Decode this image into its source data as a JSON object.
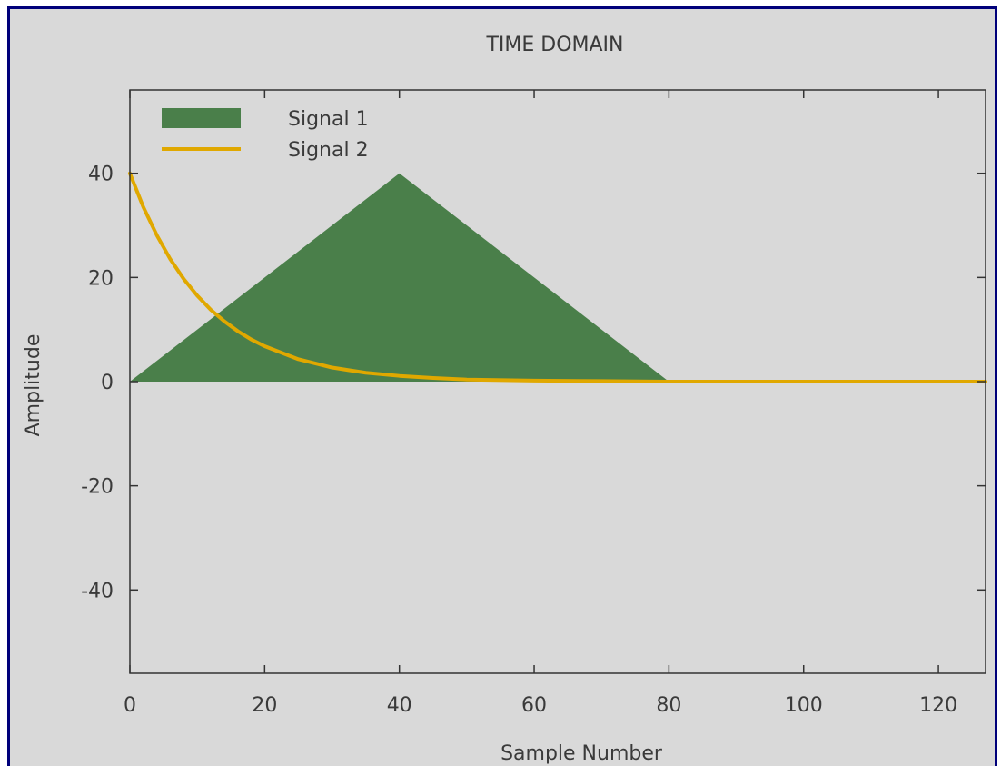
{
  "chart_data": {
    "type": "area",
    "title": "TIME DOMAIN",
    "xlabel": "Sample Number",
    "ylabel": "Amplitude",
    "xlim": [
      0,
      127
    ],
    "ylim": [
      -56,
      56
    ],
    "x_ticks": [
      0,
      20,
      40,
      60,
      80,
      100,
      120
    ],
    "y_ticks": [
      -40,
      -20,
      0,
      20,
      40
    ],
    "grid": false,
    "legend_position": "top-left",
    "series": [
      {
        "name": "Signal 1",
        "style": "filled-area",
        "color": "#4a7f4a",
        "x": [
          0,
          40,
          80,
          127
        ],
        "y": [
          0,
          40,
          0,
          0
        ]
      },
      {
        "name": "Signal 2",
        "style": "line",
        "color": "#e0a800",
        "x": [
          0,
          2,
          4,
          6,
          8,
          10,
          12,
          14,
          16,
          18,
          20,
          25,
          30,
          35,
          40,
          45,
          50,
          60,
          70,
          80,
          100,
          127
        ],
        "y": [
          40,
          33.5,
          28.1,
          23.5,
          19.7,
          16.5,
          13.8,
          11.6,
          9.7,
          8.1,
          6.8,
          4.3,
          2.7,
          1.7,
          1.1,
          0.7,
          0.4,
          0.2,
          0.1,
          0,
          0,
          0
        ]
      }
    ]
  }
}
